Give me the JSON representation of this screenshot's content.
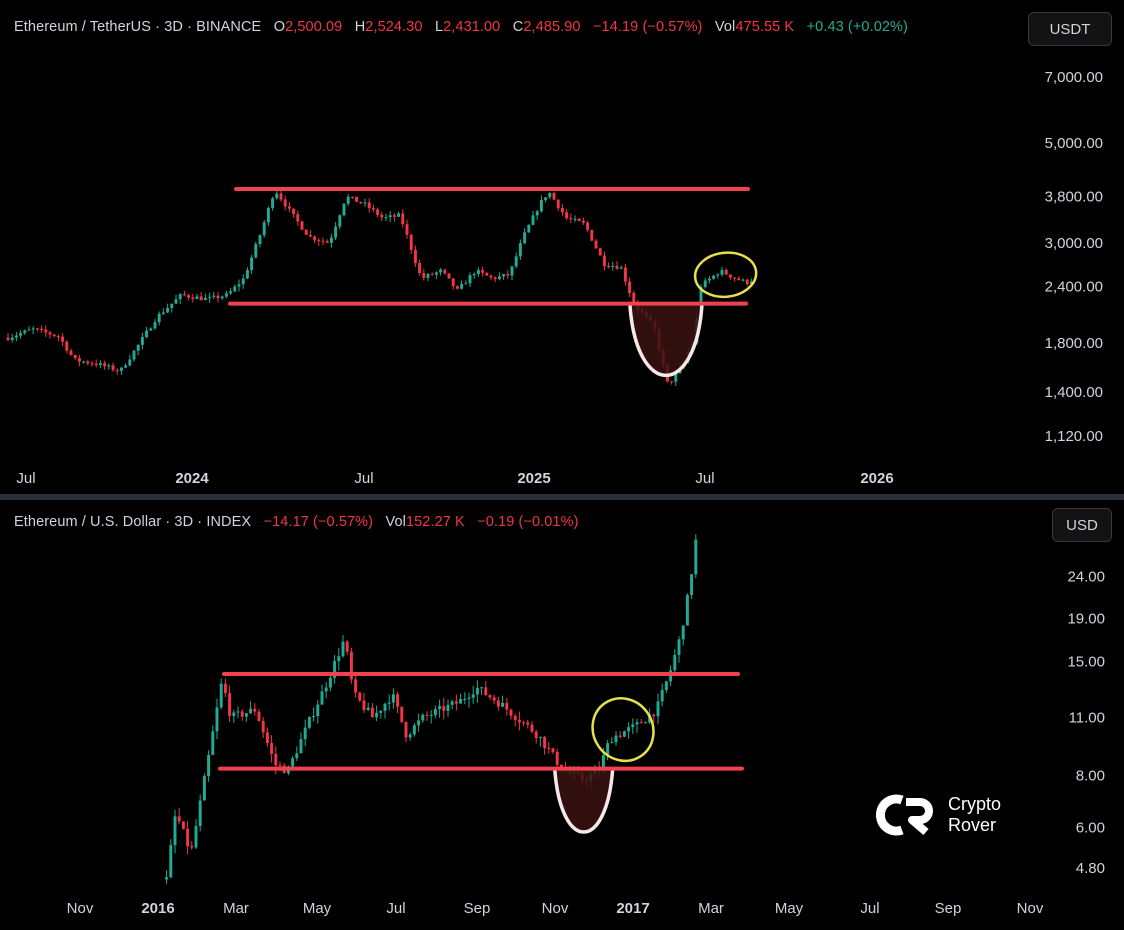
{
  "top": {
    "symbol": "Ethereum / TetherUS · 3D · BINANCE",
    "o_label": "O",
    "o_value": "2,500.09",
    "h_label": "H",
    "h_value": "2,524.30",
    "l_label": "L",
    "l_value": "2,431.00",
    "c_label": "C",
    "c_value": "2,485.90",
    "change": "−14.19 (−0.57%)",
    "vol_label": "Vol",
    "vol_value": "475.55 K",
    "vol_change": "+0.43 (+0.02%)",
    "currency": "USDT"
  },
  "bottom": {
    "symbol": "Ethereum / U.S. Dollar · 3D · INDEX",
    "change": "−14.17 (−0.57%)",
    "vol_label": "Vol",
    "vol_value": "152.27 K",
    "vol_change": "−0.19 (−0.01%)",
    "currency": "USD"
  },
  "logo": {
    "line1": "Crypto",
    "line2": "Rover"
  },
  "colors": {
    "up": "#22ab94",
    "down": "#f23645",
    "level": "#f0424e",
    "highlight": "#e6e04a",
    "cup_fill": "#3a1212",
    "cup_stroke": "#f5e8e8"
  },
  "chart_data": [
    {
      "type": "candlestick",
      "title": "Ethereum / TetherUS · 3D · BINANCE",
      "y_scale": "log",
      "y_ticks": [
        "7,000.00",
        "5,000.00",
        "3,800.00",
        "3,000.00",
        "2,400.00",
        "1,800.00",
        "1,400.00",
        "1,120.00"
      ],
      "x_ticks": [
        "Jul",
        "2024",
        "Jul",
        "2025",
        "Jul",
        "2026"
      ],
      "ylim": [
        1000,
        8200
      ],
      "time_range": [
        "2023-06-20",
        "2026-03-20"
      ],
      "series_path": [
        [
          "2023-06-20",
          1850
        ],
        [
          "2023-07-15",
          1930
        ],
        [
          "2023-08-10",
          1860
        ],
        [
          "2023-08-25",
          1650
        ],
        [
          "2023-09-15",
          1620
        ],
        [
          "2023-10-10",
          1560
        ],
        [
          "2023-10-28",
          1780
        ],
        [
          "2023-11-15",
          2050
        ],
        [
          "2023-12-10",
          2300
        ],
        [
          "2024-01-05",
          2250
        ],
        [
          "2024-01-25",
          2300
        ],
        [
          "2024-02-10",
          2500
        ],
        [
          "2024-02-28",
          3200
        ],
        [
          "2024-03-12",
          3950
        ],
        [
          "2024-03-28",
          3500
        ],
        [
          "2024-04-15",
          3100
        ],
        [
          "2024-05-05",
          3000
        ],
        [
          "2024-05-22",
          3800
        ],
        [
          "2024-06-10",
          3650
        ],
        [
          "2024-06-28",
          3400
        ],
        [
          "2024-07-15",
          3450
        ],
        [
          "2024-08-05",
          2500
        ],
        [
          "2024-08-25",
          2600
        ],
        [
          "2024-09-10",
          2350
        ],
        [
          "2024-09-28",
          2600
        ],
        [
          "2024-10-15",
          2500
        ],
        [
          "2024-11-01",
          2550
        ],
        [
          "2024-11-15",
          3100
        ],
        [
          "2024-12-01",
          3650
        ],
        [
          "2024-12-10",
          3900
        ],
        [
          "2024-12-28",
          3400
        ],
        [
          "2025-01-15",
          3300
        ],
        [
          "2025-02-03",
          2700
        ],
        [
          "2025-02-20",
          2650
        ],
        [
          "2025-03-05",
          2200
        ],
        [
          "2025-03-25",
          1950
        ],
        [
          "2025-04-08",
          1450
        ],
        [
          "2025-04-22",
          1600
        ],
        [
          "2025-05-05",
          1850
        ],
        [
          "2025-05-10",
          2400
        ],
        [
          "2025-05-30",
          2600
        ],
        [
          "2025-06-15",
          2500
        ],
        [
          "2025-06-25",
          2450
        ],
        [
          "2025-07-01",
          2486
        ]
      ],
      "levels": [
        3950,
        2200
      ],
      "annotations": [
        {
          "kind": "cup",
          "x_range": [
            "2025-03-01",
            "2025-05-12"
          ],
          "low": 1420
        },
        {
          "kind": "circle",
          "x_range": [
            "2025-05-05",
            "2025-07-05"
          ],
          "center_y": 2550
        }
      ]
    },
    {
      "type": "candlestick",
      "title": "Ethereum / U.S. Dollar · 3D · INDEX",
      "y_scale": "log",
      "y_ticks": [
        "24.00",
        "19.00",
        "15.00",
        "11.00",
        "8.00",
        "6.00",
        "4.80"
      ],
      "x_ticks": [
        "Nov",
        "2016",
        "Mar",
        "May",
        "Jul",
        "Sep",
        "Nov",
        "2017",
        "Mar",
        "May",
        "Jul",
        "Sep",
        "Nov"
      ],
      "ylim": [
        4.2,
        31
      ],
      "time_range": [
        "2015-10-01",
        "2017-11-20"
      ],
      "series_path": [
        [
          "2016-02-01",
          4.5
        ],
        [
          "2016-02-08",
          6.5
        ],
        [
          "2016-02-20",
          5.2
        ],
        [
          "2016-03-05",
          9
        ],
        [
          "2016-03-15",
          13.5
        ],
        [
          "2016-03-22",
          11
        ],
        [
          "2016-04-10",
          11.5
        ],
        [
          "2016-04-25",
          8.5
        ],
        [
          "2016-05-05",
          8.2
        ],
        [
          "2016-05-20",
          10.5
        ],
        [
          "2016-06-05",
          13.5
        ],
        [
          "2016-06-18",
          17
        ],
        [
          "2016-06-25",
          12.5
        ],
        [
          "2016-07-10",
          11
        ],
        [
          "2016-07-25",
          12.5
        ],
        [
          "2016-08-05",
          10
        ],
        [
          "2016-08-18",
          11
        ],
        [
          "2016-09-01",
          11.5
        ],
        [
          "2016-09-15",
          12
        ],
        [
          "2016-09-28",
          13
        ],
        [
          "2016-10-15",
          12
        ],
        [
          "2016-10-30",
          11
        ],
        [
          "2016-11-15",
          10
        ],
        [
          "2016-12-05",
          8.2
        ],
        [
          "2016-12-20",
          7.8
        ],
        [
          "2017-01-01",
          8.2
        ],
        [
          "2017-01-10",
          9.8
        ],
        [
          "2017-01-30",
          10.5
        ],
        [
          "2017-02-15",
          11.5
        ],
        [
          "2017-02-25",
          14
        ],
        [
          "2017-03-05",
          17
        ],
        [
          "2017-03-12",
          22
        ],
        [
          "2017-03-18",
          30
        ]
      ],
      "levels": [
        14.0,
        8.3
      ],
      "annotations": [
        {
          "kind": "cup",
          "x_range": [
            "2016-11-28",
            "2017-01-12"
          ],
          "low": 5.5
        },
        {
          "kind": "circle",
          "x_range": [
            "2016-12-28",
            "2017-02-12"
          ],
          "center_y": 10.3
        }
      ]
    }
  ]
}
